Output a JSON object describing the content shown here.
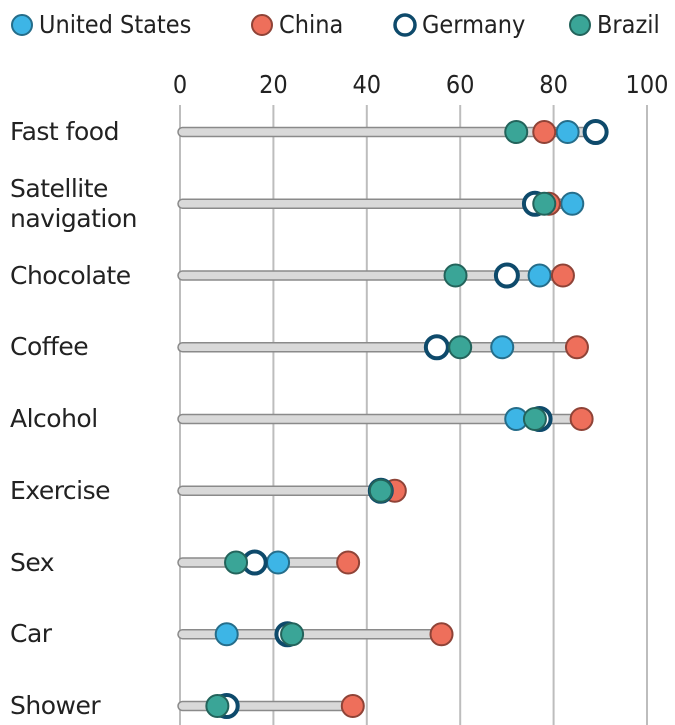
{
  "chart_data": {
    "type": "dot",
    "categories": [
      "Fast food",
      "Satellite navigation",
      "Chocolate",
      "Coffee",
      "Alcohol",
      "Exercise",
      "Sex",
      "Car",
      "Shower"
    ],
    "series": [
      {
        "name": "United States",
        "color": "#3db5e6",
        "values": [
          83,
          84,
          77,
          69,
          72,
          43,
          21,
          10,
          9
        ]
      },
      {
        "name": "China",
        "color": "#ee6f5b",
        "values": [
          78,
          79,
          82,
          85,
          86,
          46,
          36,
          56,
          37
        ]
      },
      {
        "name": "Germany",
        "color": "#0e4a6b",
        "values": [
          89,
          76,
          70,
          55,
          77,
          43,
          16,
          23,
          10
        ]
      },
      {
        "name": "Brazil",
        "color": "#3aa597",
        "values": [
          72,
          78,
          59,
          60,
          76,
          43,
          12,
          24,
          8
        ]
      }
    ],
    "xlim": [
      0,
      100
    ],
    "xticks": [
      0,
      20,
      40,
      60,
      80,
      100
    ],
    "grid": true,
    "legend": "top"
  }
}
